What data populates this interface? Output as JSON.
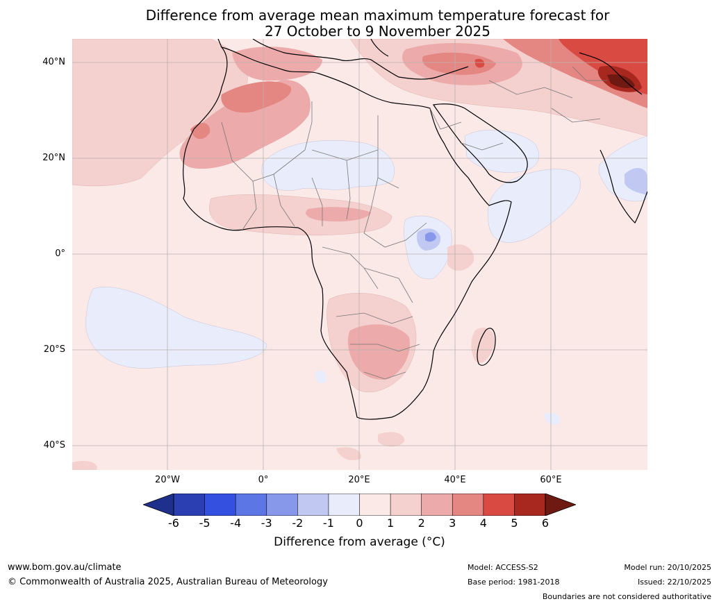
{
  "title": {
    "line1": "Difference from average mean maximum temperature forecast for",
    "line2": "27 October to 9 November 2025"
  },
  "map": {
    "latitude_labels": [
      "40°N",
      "20°N",
      "0°",
      "20°S",
      "40°S"
    ],
    "longitude_labels": [
      "20°W",
      "0°",
      "20°E",
      "40°E",
      "60°E"
    ],
    "background_color": "#fbe9e7"
  },
  "colorbar": {
    "ticks": [
      "-6",
      "-5",
      "-4",
      "-3",
      "-2",
      "-1",
      "0",
      "1",
      "2",
      "3",
      "4",
      "5",
      "6"
    ],
    "label": "Difference from average (",
    "label_unit": "°C)",
    "colors": [
      "#1f2f8c",
      "#2b3fb3",
      "#3350e0",
      "#5d76e6",
      "#8797e9",
      "#c1c9f2",
      "#e9ecfb",
      "#fbe9e7",
      "#f4d0ce",
      "#ecabaa",
      "#e48682",
      "#d94a42",
      "#a8281f",
      "#6e1a12"
    ]
  },
  "footer": {
    "website": "www.bom.gov.au/climate",
    "copyright": "© Commonwealth of Australia 2025, Australian Bureau of Meteorology",
    "model": "Model: ACCESS-S2",
    "base_period": "Base period: 1981-2018",
    "model_run": "Model run: 20/10/2025",
    "issued": "Issued: 22/10/2025",
    "disclaimer": "Boundaries are not considered authoritative"
  }
}
